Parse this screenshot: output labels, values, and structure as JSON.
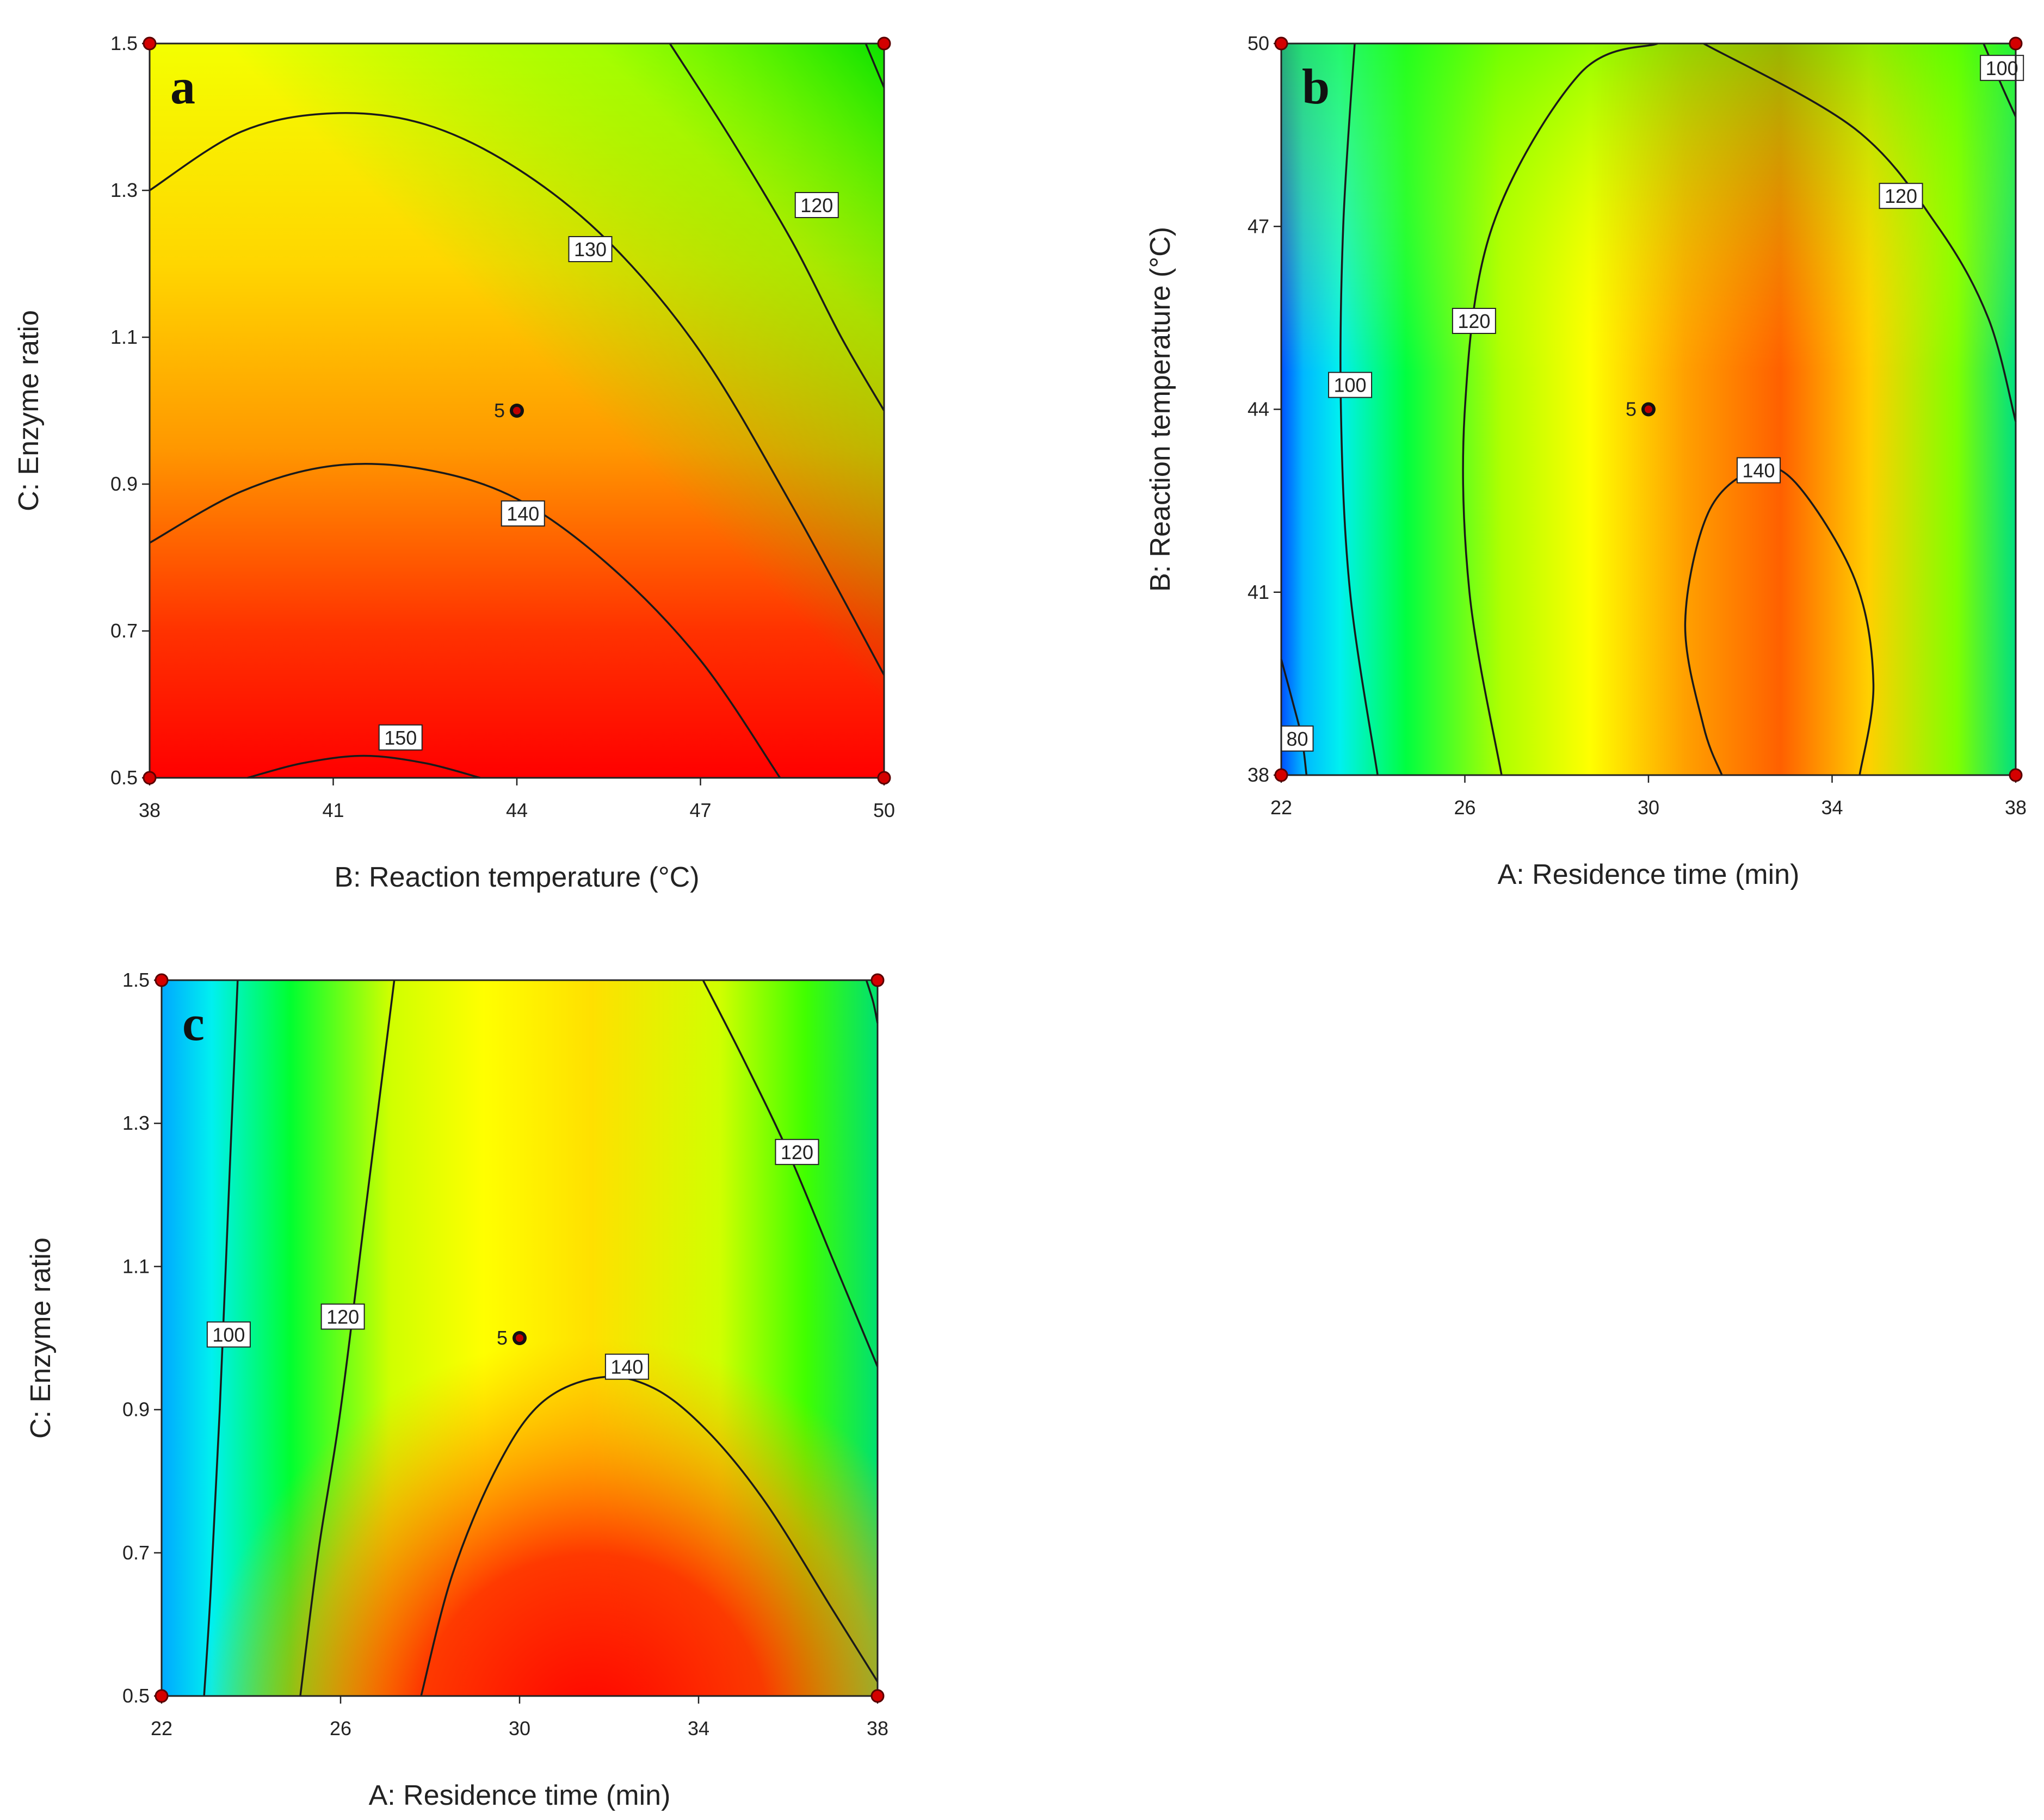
{
  "chart_data": [
    {
      "type": "contour",
      "panel_label": "a",
      "xlabel": "B: Reaction temperature (°C)",
      "ylabel": "C: Enzyme ratio",
      "xlim": [
        38,
        50
      ],
      "ylim": [
        0.5,
        1.5
      ],
      "xticks": [
        "38",
        "41",
        "44",
        "47",
        "50"
      ],
      "yticks": [
        "0.5",
        "0.7",
        "0.9",
        "1.1",
        "1.3",
        "1.5"
      ],
      "center_point": {
        "x": 44,
        "y": 1.0,
        "label": "5"
      },
      "corner_points": [
        [
          38,
          0.5
        ],
        [
          50,
          0.5
        ],
        [
          38,
          1.5
        ],
        [
          50,
          1.5
        ]
      ],
      "contours": [
        {
          "level": "150",
          "points": [
            [
              39.6,
              0.5
            ],
            [
              40.5,
              0.52
            ],
            [
              41.5,
              0.53
            ],
            [
              42.5,
              0.52
            ],
            [
              43.4,
              0.5
            ]
          ],
          "label_at": [
            42.1,
            0.555
          ]
        },
        {
          "level": "140",
          "points": [
            [
              38,
              0.82
            ],
            [
              39.5,
              0.89
            ],
            [
              41,
              0.925
            ],
            [
              42.5,
              0.92
            ],
            [
              44,
              0.88
            ],
            [
              45.5,
              0.79
            ],
            [
              47,
              0.66
            ],
            [
              48.3,
              0.5
            ]
          ],
          "label_at": [
            44.1,
            0.86
          ]
        },
        {
          "level": "130",
          "points": [
            [
              38,
              1.3
            ],
            [
              39.5,
              1.38
            ],
            [
              41,
              1.405
            ],
            [
              42.5,
              1.39
            ],
            [
              44,
              1.33
            ],
            [
              45.5,
              1.23
            ],
            [
              47,
              1.08
            ],
            [
              48.5,
              0.87
            ],
            [
              50,
              0.64
            ]
          ],
          "label_at": [
            45.2,
            1.22
          ]
        },
        {
          "level": "120",
          "points": [
            [
              46.5,
              1.5
            ],
            [
              47.5,
              1.37
            ],
            [
              48.5,
              1.23
            ],
            [
              49.3,
              1.1
            ],
            [
              50,
              1.0
            ]
          ],
          "label_at": [
            48.9,
            1.28
          ]
        },
        {
          "level": "",
          "points": [
            [
              49.7,
              1.5
            ],
            [
              49.85,
              1.47
            ],
            [
              50,
              1.44
            ]
          ]
        }
      ]
    },
    {
      "type": "contour",
      "panel_label": "b",
      "xlabel": "A: Residence time (min)",
      "ylabel": "B: Reaction temperature (°C)",
      "xlim": [
        22,
        38
      ],
      "ylim": [
        38,
        50
      ],
      "xticks": [
        "22",
        "26",
        "30",
        "34",
        "38"
      ],
      "yticks": [
        "38",
        "41",
        "44",
        "47",
        "50"
      ],
      "center_point": {
        "x": 30,
        "y": 44,
        "label": "5"
      },
      "corner_points": [
        [
          22,
          38
        ],
        [
          38,
          38
        ],
        [
          22,
          50
        ],
        [
          38,
          50
        ]
      ],
      "contours": [
        {
          "level": "80",
          "points": [
            [
              22,
              39.9
            ],
            [
              22.25,
              39.2
            ],
            [
              22.45,
              38.6
            ],
            [
              22.55,
              38
            ]
          ],
          "label_at": [
            22.35,
            38.6
          ]
        },
        {
          "level": "100",
          "points": [
            [
              23.6,
              50
            ],
            [
              23.35,
              47
            ],
            [
              23.3,
              44
            ],
            [
              23.5,
              41
            ],
            [
              24.1,
              38
            ]
          ],
          "label_at": [
            23.5,
            44.4
          ]
        },
        {
          "level": "120",
          "points": [
            [
              26.8,
              38
            ],
            [
              26.1,
              41
            ],
            [
              26,
              44
            ],
            [
              26.6,
              47
            ],
            [
              28.5,
              49.5
            ],
            [
              30.2,
              50
            ]
          ],
          "label_at": [
            26.2,
            45.45
          ]
        },
        {
          "level": "120",
          "points": [
            [
              31.2,
              50
            ],
            [
              34.5,
              48.6
            ],
            [
              36.3,
              47
            ],
            [
              37.4,
              45.5
            ],
            [
              38,
              43.8
            ]
          ],
          "label_at": [
            35.5,
            47.5
          ]
        },
        {
          "level": "140",
          "points": [
            [
              34.6,
              38
            ],
            [
              34.9,
              39.5
            ],
            [
              34.5,
              41.2
            ],
            [
              33.2,
              42.8
            ],
            [
              32.3,
              43
            ],
            [
              31.3,
              42.3
            ],
            [
              30.8,
              40.5
            ],
            [
              31.2,
              38.8
            ],
            [
              31.6,
              38
            ]
          ],
          "label_at": [
            32.4,
            43.0
          ]
        },
        {
          "level": "100",
          "points": [
            [
              37.3,
              50
            ],
            [
              37.7,
              49.3
            ],
            [
              38,
              48.8
            ]
          ],
          "label_at": [
            37.7,
            49.6
          ]
        }
      ]
    },
    {
      "type": "contour",
      "panel_label": "c",
      "xlabel": "A: Residence time (min)",
      "ylabel": "C: Enzyme ratio",
      "xlim": [
        22,
        38
      ],
      "ylim": [
        0.5,
        1.5
      ],
      "xticks": [
        "22",
        "26",
        "30",
        "34",
        "38"
      ],
      "yticks": [
        "0.5",
        "0.7",
        "0.9",
        "1.1",
        "1.3",
        "1.5"
      ],
      "center_point": {
        "x": 30,
        "y": 1.0,
        "label": "5"
      },
      "corner_points": [
        [
          22,
          0.5
        ],
        [
          38,
          0.5
        ],
        [
          22,
          1.5
        ],
        [
          38,
          1.5
        ]
      ],
      "contours": [
        {
          "level": "100",
          "points": [
            [
              23.7,
              1.5
            ],
            [
              23.5,
              1.2
            ],
            [
              23.3,
              0.9
            ],
            [
              23.1,
              0.65
            ],
            [
              22.95,
              0.5
            ]
          ],
          "label_at": [
            23.5,
            1.005
          ]
        },
        {
          "level": "120",
          "points": [
            [
              27.2,
              1.5
            ],
            [
              26.6,
              1.2
            ],
            [
              26,
              0.9
            ],
            [
              25.5,
              0.7
            ],
            [
              25.1,
              0.5
            ]
          ],
          "label_at": [
            26.05,
            1.03
          ]
        },
        {
          "level": "140",
          "points": [
            [
              27.8,
              0.5
            ],
            [
              28.5,
              0.67
            ],
            [
              29.5,
              0.82
            ],
            [
              30.5,
              0.91
            ],
            [
              31.8,
              0.945
            ],
            [
              33,
              0.93
            ],
            [
              34.2,
              0.87
            ],
            [
              35.5,
              0.77
            ],
            [
              37,
              0.62
            ],
            [
              38,
              0.52
            ]
          ],
          "label_at": [
            32.4,
            0.96
          ]
        },
        {
          "level": "120",
          "points": [
            [
              34.1,
              1.5
            ],
            [
              35,
              1.39
            ],
            [
              36,
              1.26
            ],
            [
              37,
              1.11
            ],
            [
              38,
              0.96
            ]
          ],
          "label_at": [
            36.2,
            1.26
          ]
        },
        {
          "level": "",
          "points": [
            [
              37.75,
              1.5
            ],
            [
              37.9,
              1.47
            ],
            [
              38,
              1.44
            ]
          ]
        }
      ]
    }
  ]
}
